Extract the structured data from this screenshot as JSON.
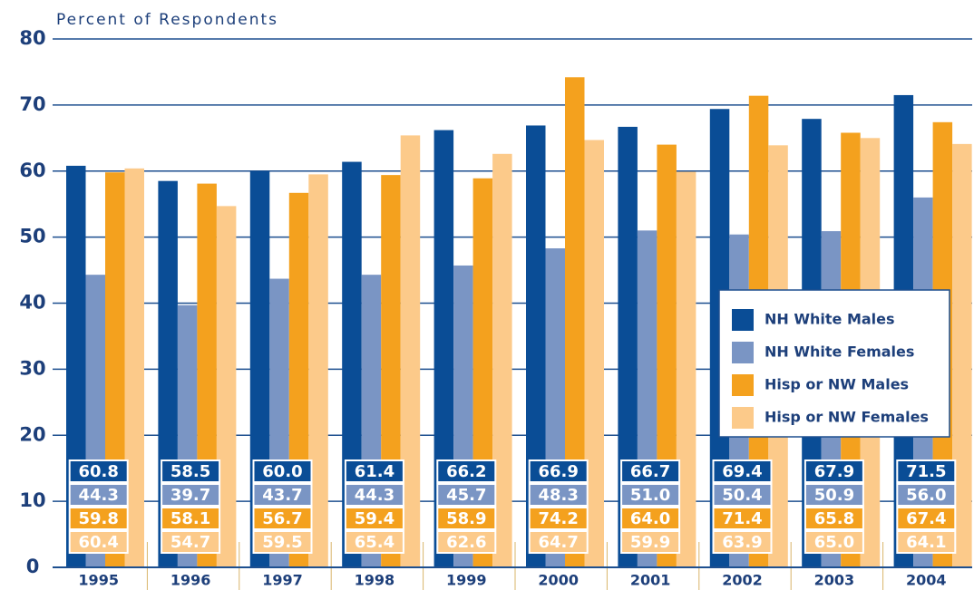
{
  "chart_data": {
    "type": "bar",
    "y_axis_label": "Percent of Respondents",
    "categories": [
      "1995",
      "1996",
      "1997",
      "1998",
      "1999",
      "2000",
      "2001",
      "2002",
      "2003",
      "2004"
    ],
    "series": [
      {
        "name": "NH White Males",
        "color": "#0a4d96",
        "values": [
          60.8,
          58.5,
          60,
          61.4,
          66.2,
          66.9,
          66.7,
          69.4,
          67.9,
          71.5
        ],
        "value_labels": [
          "60.8",
          "58.5",
          "60.0",
          "61.4",
          "66.2",
          "66.9",
          "66.7",
          "69.4",
          "67.9",
          "71.5"
        ]
      },
      {
        "name": "NH White Females",
        "color": "#7a95c4",
        "values": [
          44.3,
          39.7,
          43.7,
          44.3,
          45.7,
          48.3,
          51,
          50.4,
          50.9,
          56
        ],
        "value_labels": [
          "44.3",
          "39.7",
          "43.7",
          "44.3",
          "45.7",
          "48.3",
          "51.0",
          "50.4",
          "50.9",
          "56.0"
        ]
      },
      {
        "name": "Hisp or NW Males",
        "color": "#f4a11e",
        "values": [
          59.8,
          58.1,
          56.7,
          59.4,
          58.9,
          74.2,
          64,
          71.4,
          65.8,
          67.4
        ],
        "value_labels": [
          "59.8",
          "58.1",
          "56.7",
          "59.4",
          "58.9",
          "74.2",
          "64.0",
          "71.4",
          "65.8",
          "67.4"
        ]
      },
      {
        "name": "Hisp or NW Females",
        "color": "#fcca8a",
        "values": [
          60.4,
          54.7,
          59.5,
          65.4,
          62.6,
          64.7,
          59.9,
          63.9,
          65,
          64.1
        ],
        "value_labels": [
          "60.4",
          "54.7",
          "59.5",
          "65.4",
          "62.6",
          "64.7",
          "59.9",
          "63.9",
          "65.0",
          "64.1"
        ]
      }
    ],
    "ylim": [
      0,
      80
    ],
    "yticks": [
      0,
      10,
      20,
      30,
      40,
      50,
      60,
      70,
      80
    ],
    "grid": true,
    "legend": "lower right"
  }
}
